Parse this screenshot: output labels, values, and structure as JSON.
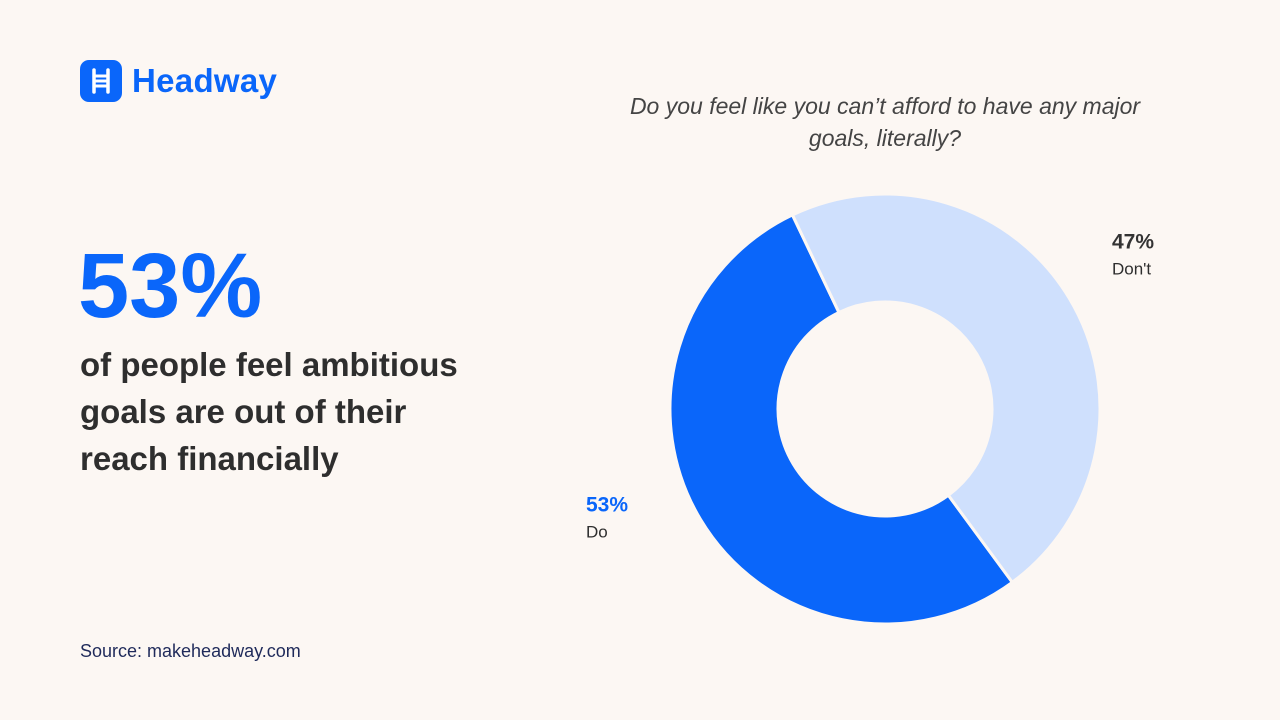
{
  "brand": "Headway",
  "headline": "53%",
  "description": [
    "of people feel ambitious",
    "goals are out of their",
    "reach financially"
  ],
  "source": "Source: makeheadway.com",
  "chart_data": {
    "type": "donut",
    "title": "Do you feel like you can’t afford to have any major goals, literally?",
    "categories": [
      "Do",
      "Don't"
    ],
    "values": [
      53,
      47
    ],
    "value_labels": [
      "53%",
      "47%"
    ],
    "colors": [
      "#0a66fa",
      "#cfe0fd"
    ]
  }
}
